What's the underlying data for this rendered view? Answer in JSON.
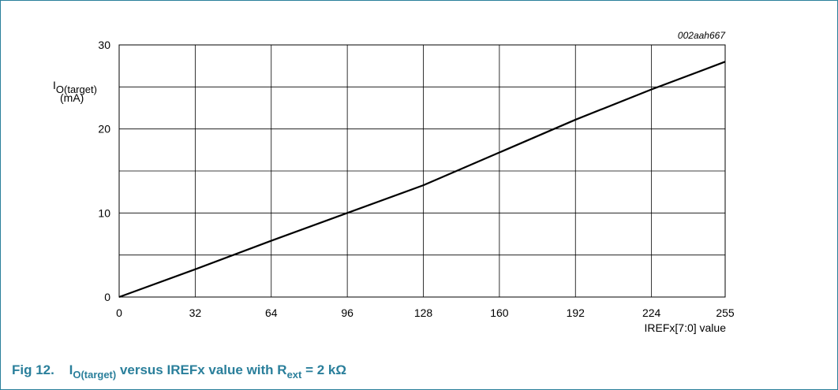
{
  "figure_code": "002aah667",
  "caption": {
    "number": "Fig 12.",
    "text_parts": [
      {
        "t": "I",
        "sub": false
      },
      {
        "t": "O(target)",
        "sub": true
      },
      {
        "t": " versus IREFx value with R",
        "sub": false
      },
      {
        "t": "ext",
        "sub": true
      },
      {
        "t": " = 2 kΩ",
        "sub": false
      }
    ]
  },
  "colors": {
    "caption": "#2a7f9b",
    "frame": "#2a7f9b",
    "line": "#000000",
    "grid": "#000000"
  },
  "chart_data": {
    "type": "line",
    "ylabel_main": "I",
    "ylabel_sub": "O(target)",
    "ylabel_unit": "(mA)",
    "xlabel": "IREFx[7:0] value",
    "x_ticks": [
      0,
      32,
      64,
      96,
      128,
      160,
      192,
      224,
      255
    ],
    "y_ticks_labeled": [
      0,
      10,
      20,
      30
    ],
    "y_gridlines": [
      5,
      15,
      25
    ],
    "xlim": [
      0,
      255
    ],
    "ylim": [
      0,
      30
    ],
    "grid": true,
    "series": [
      {
        "x": [
          0,
          32,
          64,
          96,
          128,
          160,
          192,
          224,
          255
        ],
        "y": [
          0,
          3.3,
          6.7,
          10,
          13.3,
          17.2,
          21.1,
          24.7,
          28
        ]
      }
    ]
  }
}
